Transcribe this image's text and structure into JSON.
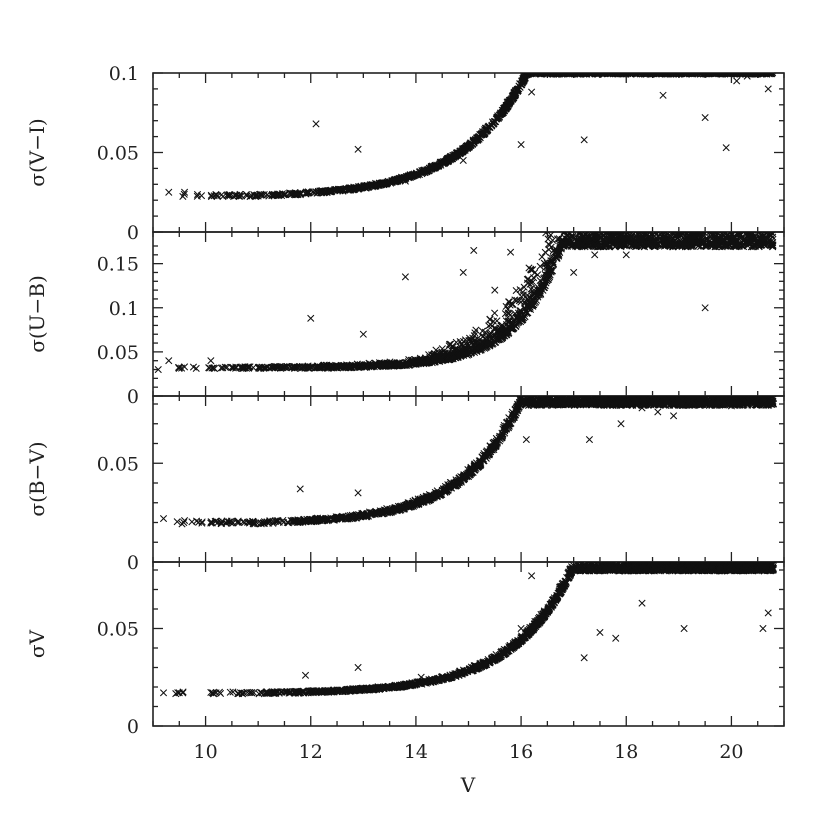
{
  "chart_data": {
    "type": "scatter",
    "marker": "x",
    "marker_color": "#111111",
    "shared_x": {
      "label": "V",
      "range": [
        9,
        21
      ],
      "ticks": [
        10,
        12,
        14,
        16,
        18,
        20
      ],
      "tick_labels": [
        "10",
        "12",
        "14",
        "16",
        "18",
        "20"
      ],
      "minor_step": 0.5
    },
    "panels": [
      {
        "id": "vi",
        "ylabel": "σ(V−I)",
        "ylim": [
          0,
          0.1
        ],
        "yticks": [
          0,
          0.05,
          0.1
        ],
        "ytick_labels": [
          "0",
          "0.05",
          "0.1"
        ],
        "minor_step": 0.01,
        "trend": {
          "base": 0.023,
          "growth": 0.0013,
          "scale": 1.25,
          "v0": 11,
          "cap": 0.1
        },
        "scatter_band": [
          0.0015,
          0.012
        ],
        "outliers": [
          [
            9.3,
            0.025
          ],
          [
            9.6,
            0.025
          ],
          [
            10.2,
            0.023
          ],
          [
            12.1,
            0.068
          ],
          [
            12.9,
            0.052
          ],
          [
            13.8,
            0.032
          ],
          [
            14.9,
            0.045
          ],
          [
            16.2,
            0.088
          ],
          [
            16.0,
            0.055
          ],
          [
            17.2,
            0.058
          ],
          [
            18.7,
            0.086
          ],
          [
            19.5,
            0.072
          ],
          [
            20.1,
            0.095
          ],
          [
            20.3,
            0.098
          ],
          [
            20.7,
            0.09
          ],
          [
            19.9,
            0.053
          ]
        ]
      },
      {
        "id": "ub",
        "ylabel": "σ(U−B)",
        "ylim": [
          0,
          0.17
        ],
        "yticks": [
          0,
          0.05,
          0.1,
          0.15
        ],
        "ytick_labels": [
          "0",
          "0.05",
          "0.1",
          "0.15"
        ],
        "minor_step": 0.01,
        "trend": {
          "base": 0.032,
          "growth": 0.00012,
          "scale": 0.82,
          "v0": 11,
          "cap": 0.17
        },
        "scatter_band": [
          0.002,
          0.09
        ],
        "outliers": [
          [
            9.1,
            0.03
          ],
          [
            9.3,
            0.04
          ],
          [
            9.6,
            0.033
          ],
          [
            10.1,
            0.04
          ],
          [
            12.0,
            0.088
          ],
          [
            13.0,
            0.07
          ],
          [
            13.8,
            0.135
          ],
          [
            14.9,
            0.14
          ],
          [
            15.1,
            0.165
          ],
          [
            15.5,
            0.12
          ],
          [
            15.8,
            0.163
          ],
          [
            16.5,
            0.15
          ],
          [
            17.0,
            0.14
          ],
          [
            17.4,
            0.16
          ],
          [
            18.0,
            0.16
          ],
          [
            19.5,
            0.1
          ]
        ]
      },
      {
        "id": "bv",
        "ylabel": "σ(B−V)",
        "ylim": [
          0,
          0.08
        ],
        "yticks": [
          0,
          0.05
        ],
        "ytick_labels": [
          "0",
          "0.05"
        ],
        "minor_step": 0.01,
        "trend": {
          "base": 0.02,
          "growth": 0.00065,
          "scale": 1.1,
          "v0": 11,
          "cap": 0.08
        },
        "scatter_band": [
          0.0015,
          0.025
        ],
        "outliers": [
          [
            9.2,
            0.022
          ],
          [
            9.6,
            0.021
          ],
          [
            10.3,
            0.02
          ],
          [
            11.8,
            0.037
          ],
          [
            12.9,
            0.035
          ],
          [
            16.1,
            0.062
          ],
          [
            17.3,
            0.062
          ],
          [
            17.5,
            0.08
          ],
          [
            17.9,
            0.07
          ],
          [
            18.3,
            0.078
          ],
          [
            18.6,
            0.076
          ],
          [
            18.9,
            0.074
          ],
          [
            19.7,
            0.08
          ],
          [
            20.0,
            0.079
          ],
          [
            20.1,
            0.08
          ]
        ]
      },
      {
        "id": "v",
        "ylabel": "σV",
        "ylim": [
          0,
          0.08
        ],
        "yticks": [
          0,
          0.05
        ],
        "ytick_labels": [
          "0",
          "0.05"
        ],
        "minor_step": 0.01,
        "trend": {
          "base": 0.017,
          "growth": 0.00035,
          "scale": 1.15,
          "v0": 11,
          "cap": 0.08
        },
        "scatter_band": [
          0.001,
          0.013
        ],
        "outliers": [
          [
            9.2,
            0.017
          ],
          [
            9.5,
            0.017
          ],
          [
            10.2,
            0.017
          ],
          [
            11.9,
            0.026
          ],
          [
            12.9,
            0.03
          ],
          [
            14.1,
            0.025
          ],
          [
            16.0,
            0.05
          ],
          [
            16.2,
            0.077
          ],
          [
            17.2,
            0.035
          ],
          [
            17.5,
            0.048
          ],
          [
            17.8,
            0.045
          ],
          [
            18.3,
            0.063
          ],
          [
            18.7,
            0.08
          ],
          [
            19.1,
            0.05
          ],
          [
            20.7,
            0.058
          ],
          [
            20.6,
            0.05
          ]
        ]
      }
    ]
  }
}
